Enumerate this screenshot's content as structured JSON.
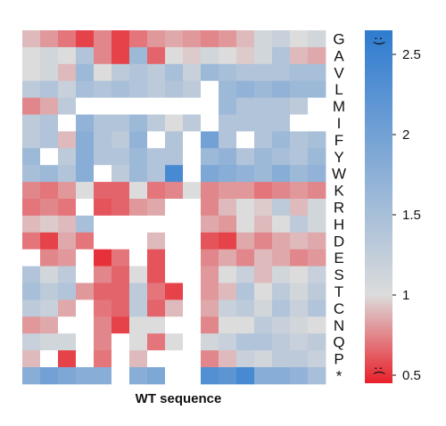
{
  "chart_data": {
    "type": "heatmap",
    "xlabel": "WT sequence",
    "ylabels": [
      "G",
      "A",
      "V",
      "L",
      "M",
      "I",
      "F",
      "Y",
      "W",
      "K",
      "R",
      "H",
      "D",
      "E",
      "S",
      "T",
      "C",
      "N",
      "Q",
      "P",
      "*"
    ],
    "colorbar": {
      "range": [
        0.45,
        2.65
      ],
      "ticks": [
        "0.5",
        "1",
        "1.5",
        "2",
        "2.5"
      ],
      "tick_values": [
        0.5,
        1,
        1.5,
        2,
        2.5
      ],
      "colors": {
        "low": "#e8202a",
        "mid": "#dcdcdc",
        "high": "#2e7bd0"
      },
      "top_icon": "smiley-face-icon",
      "bottom_icon": "frowny-face-icon"
    },
    "missing_color": "#ffffff",
    "values": [
      [
        0.9,
        0.8,
        0.7,
        0.55,
        0.75,
        0.55,
        0.7,
        0.8,
        0.85,
        0.8,
        0.75,
        0.8,
        0.9,
        1.1,
        1.2,
        1.0,
        1.1
      ],
      [
        1.0,
        1.1,
        1.0,
        1.4,
        0.75,
        0.55,
        1.6,
        0.65,
        1.0,
        0.95,
        1.1,
        1.0,
        0.95,
        1.1,
        1.4,
        0.9,
        0.85
      ],
      [
        1.0,
        1.1,
        0.9,
        1.6,
        1.0,
        1.3,
        1.4,
        1.3,
        1.5,
        1.2,
        1.6,
        1.5,
        1.4,
        1.4,
        1.4,
        1.5,
        1.5
      ],
      [
        1.3,
        1.4,
        1.2,
        1.5,
        1.4,
        1.5,
        1.4,
        1.3,
        1.4,
        1.3,
        null,
        1.6,
        1.7,
        1.6,
        1.7,
        1.6,
        1.6
      ],
      [
        0.75,
        0.85,
        1.3,
        null,
        null,
        null,
        null,
        null,
        null,
        null,
        null,
        1.6,
        1.4,
        1.4,
        1.4,
        1.3,
        null
      ],
      [
        1.3,
        1.4,
        null,
        1.7,
        1.4,
        1.4,
        1.6,
        1.3,
        1.0,
        1.3,
        null,
        1.4,
        1.4,
        1.4,
        1.4,
        null,
        null
      ],
      [
        1.3,
        1.4,
        0.9,
        1.8,
        1.4,
        1.3,
        1.7,
        null,
        1.4,
        null,
        2.0,
        1.4,
        null,
        1.4,
        1.6,
        1.4,
        1.5
      ],
      [
        1.6,
        null,
        1.3,
        1.8,
        1.4,
        1.4,
        1.6,
        1.4,
        1.4,
        null,
        1.6,
        1.7,
        1.4,
        1.6,
        1.5,
        1.4,
        1.6
      ],
      [
        1.5,
        1.6,
        1.4,
        1.8,
        null,
        1.3,
        1.6,
        1.4,
        2.4,
        null,
        1.9,
        1.8,
        1.7,
        1.6,
        1.8,
        1.6,
        1.7
      ],
      [
        0.75,
        0.7,
        0.8,
        1.0,
        0.65,
        0.65,
        1.0,
        0.7,
        0.75,
        1.0,
        0.75,
        0.8,
        0.8,
        0.7,
        0.75,
        0.8,
        0.75
      ],
      [
        0.7,
        0.75,
        0.7,
        null,
        0.6,
        0.65,
        0.8,
        0.85,
        null,
        null,
        0.75,
        0.9,
        1.0,
        0.95,
        1.3,
        0.9,
        1.1
      ],
      [
        0.9,
        0.95,
        0.9,
        1.5,
        null,
        null,
        null,
        null,
        null,
        null,
        0.85,
        0.8,
        1.0,
        0.9,
        1.0,
        1.3,
        1.1
      ],
      [
        0.7,
        0.55,
        0.85,
        0.7,
        null,
        null,
        null,
        0.9,
        null,
        null,
        0.6,
        0.55,
        0.85,
        0.75,
        0.85,
        0.9,
        0.85
      ],
      [
        null,
        0.75,
        0.8,
        null,
        0.5,
        0.7,
        null,
        0.6,
        null,
        null,
        0.75,
        0.85,
        0.75,
        0.9,
        0.85,
        0.75,
        0.8
      ],
      [
        1.4,
        1.1,
        1.3,
        null,
        0.75,
        0.65,
        1.0,
        0.6,
        null,
        null,
        0.8,
        1.0,
        1.2,
        0.9,
        1.1,
        1.0,
        1.2
      ],
      [
        1.5,
        1.3,
        1.4,
        0.8,
        0.65,
        0.65,
        1.3,
        0.7,
        0.55,
        null,
        0.8,
        0.9,
        1.4,
        1.0,
        1.3,
        1.1,
        1.3
      ],
      [
        1.3,
        1.2,
        0.85,
        null,
        0.7,
        0.65,
        1.3,
        0.65,
        0.9,
        null,
        0.85,
        1.2,
        1.3,
        1.1,
        1.4,
        1.2,
        1.4
      ],
      [
        0.8,
        0.85,
        null,
        null,
        0.75,
        0.55,
        1.0,
        1.0,
        null,
        null,
        0.75,
        1.0,
        1.0,
        1.3,
        1.2,
        1.1,
        1.0
      ],
      [
        1.2,
        1.1,
        1.1,
        null,
        0.75,
        null,
        1.0,
        0.7,
        1.0,
        null,
        1.1,
        1.2,
        1.4,
        1.4,
        1.3,
        1.2,
        1.3
      ],
      [
        0.9,
        null,
        0.55,
        null,
        0.7,
        null,
        0.9,
        null,
        null,
        null,
        0.75,
        0.9,
        1.2,
        1.1,
        1.3,
        1.3,
        1.2
      ],
      [
        1.8,
        2.0,
        1.9,
        1.8,
        1.8,
        null,
        1.8,
        1.9,
        null,
        null,
        2.3,
        2.2,
        2.4,
        1.8,
        1.8,
        1.7,
        1.5
      ]
    ]
  }
}
